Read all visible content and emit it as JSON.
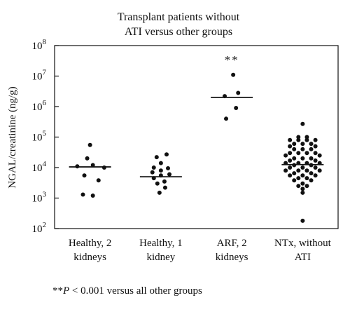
{
  "chart_data": {
    "type": "scatter",
    "title_lines": [
      "Transplant patients without",
      "ATI versus other groups"
    ],
    "ylabel": "NGAL/creatinine (ng/g)",
    "yscale": "log",
    "ylim": [
      100,
      100000000
    ],
    "ytick_exponents": [
      2,
      3,
      4,
      5,
      6,
      7,
      8
    ],
    "categories": [
      {
        "lines": [
          "Healthy, 2",
          "kidneys"
        ]
      },
      {
        "lines": [
          "Healthy, 1",
          "kidney"
        ]
      },
      {
        "lines": [
          "ARF, 2",
          "kidneys"
        ]
      },
      {
        "lines": [
          "NTx, without",
          "ATI"
        ]
      }
    ],
    "series": [
      {
        "medians": [
          10500,
          5000,
          2000000,
          12500
        ],
        "points": [
          [
            [
              55000,
              0
            ],
            [
              20000,
              -0.04
            ],
            [
              12000,
              0.04
            ],
            [
              11000,
              -0.18
            ],
            [
              10000,
              0.2
            ],
            [
              5500,
              -0.08
            ],
            [
              3800,
              0.12
            ],
            [
              1300,
              -0.1
            ],
            [
              1200,
              0.04
            ]
          ],
          [
            [
              27000,
              0.08
            ],
            [
              22000,
              -0.06
            ],
            [
              14000,
              0.0
            ],
            [
              10000,
              -0.1
            ],
            [
              9500,
              0.1
            ],
            [
              8000,
              0.0
            ],
            [
              7000,
              -0.12
            ],
            [
              6000,
              0.12
            ],
            [
              5500,
              0.0
            ],
            [
              4500,
              -0.1
            ],
            [
              3500,
              0.05
            ],
            [
              3000,
              -0.05
            ],
            [
              2200,
              0.06
            ],
            [
              1500,
              -0.02
            ]
          ],
          [
            [
              11000000,
              0.02
            ],
            [
              2800000,
              0.09
            ],
            [
              2200000,
              -0.1
            ],
            [
              900000,
              0.06
            ],
            [
              400000,
              -0.08
            ]
          ],
          [
            [
              270000,
              0.0
            ],
            [
              100000,
              -0.06
            ],
            [
              100000,
              0.06
            ],
            [
              80000,
              -0.18
            ],
            [
              80000,
              -0.06
            ],
            [
              80000,
              0.06
            ],
            [
              80000,
              0.18
            ],
            [
              60000,
              -0.12
            ],
            [
              60000,
              0.0
            ],
            [
              60000,
              0.12
            ],
            [
              50000,
              -0.18
            ],
            [
              50000,
              0.18
            ],
            [
              40000,
              -0.12
            ],
            [
              40000,
              0.0
            ],
            [
              40000,
              0.12
            ],
            [
              30000,
              -0.18
            ],
            [
              30000,
              -0.06
            ],
            [
              30000,
              0.06
            ],
            [
              30000,
              0.18
            ],
            [
              25000,
              -0.24
            ],
            [
              25000,
              0.24
            ],
            [
              20000,
              -0.12
            ],
            [
              20000,
              0.0
            ],
            [
              20000,
              0.12
            ],
            [
              17000,
              -0.18
            ],
            [
              17000,
              0.18
            ],
            [
              14000,
              -0.24
            ],
            [
              14000,
              -0.06
            ],
            [
              14000,
              0.06
            ],
            [
              14000,
              0.24
            ],
            [
              12000,
              -0.12
            ],
            [
              12000,
              0.12
            ],
            [
              10000,
              -0.18
            ],
            [
              10000,
              0.0
            ],
            [
              10000,
              0.18
            ],
            [
              8000,
              -0.24
            ],
            [
              8000,
              -0.06
            ],
            [
              8000,
              0.06
            ],
            [
              8000,
              0.24
            ],
            [
              6500,
              -0.12
            ],
            [
              6500,
              0.12
            ],
            [
              5500,
              -0.18
            ],
            [
              5500,
              0.0
            ],
            [
              5500,
              0.18
            ],
            [
              4500,
              -0.06
            ],
            [
              4500,
              0.06
            ],
            [
              3800,
              -0.12
            ],
            [
              3800,
              0.12
            ],
            [
              3000,
              0.0
            ],
            [
              2500,
              -0.06
            ],
            [
              2500,
              0.06
            ],
            [
              2000,
              0.0
            ],
            [
              1500,
              0.0
            ],
            [
              180,
              0.0
            ]
          ]
        ]
      }
    ],
    "annotations": [
      {
        "text": "**",
        "category_index": 2,
        "y": 25000000
      }
    ]
  },
  "footnote": {
    "stars": "**",
    "p": "P",
    "rest": " < 0.001 versus all other groups"
  }
}
